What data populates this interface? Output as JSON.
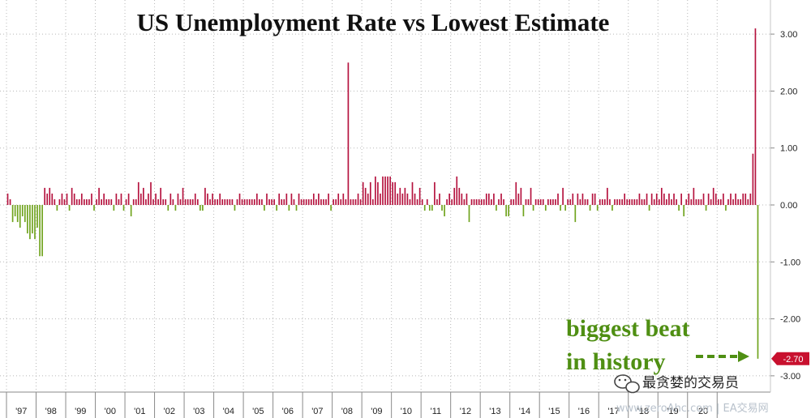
{
  "chart_data": {
    "type": "bar",
    "title": "US Unemployment Rate vs Lowest Estimate",
    "xlabel": "",
    "ylabel": "",
    "ylim": [
      -3.0,
      3.5
    ],
    "y_ticks": [
      "3.00",
      "2.00",
      "1.00",
      "0.00",
      "-1.00",
      "-2.00",
      "-3.00"
    ],
    "x_start_year": 1997,
    "x_tick_labels": [
      "'97",
      "'98",
      "'99",
      "'00",
      "'01",
      "'02",
      "'03",
      "'04",
      "'05",
      "'06",
      "'07",
      "'08",
      "'09",
      "'10",
      "'11",
      "'12",
      "'13",
      "'14",
      "'15",
      "'16",
      "'17",
      "'18",
      "'19",
      "'20"
    ],
    "grid": true,
    "positive_color": "#b5123e",
    "negative_color": "#6fa31c",
    "series": [
      {
        "values": [
          0.2,
          0.1,
          -0.3,
          -0.2,
          -0.3,
          -0.4,
          -0.2,
          -0.3,
          -0.5,
          -0.6,
          -0.5,
          -0.6,
          -0.4,
          -0.9,
          -0.9,
          0.3,
          0.2,
          0.3,
          0.2,
          0.1,
          -0.1,
          0.1,
          0.2,
          0.1,
          0.2,
          -0.1,
          0.3,
          0.2,
          0.1,
          0.1,
          0.2,
          0.1,
          0.1,
          0.1,
          0.2,
          -0.1,
          0.1,
          0.3,
          0.1,
          0.2,
          0.1,
          0.1,
          0.1,
          -0.1,
          0.2,
          0.1,
          0.2,
          -0.1,
          0.1,
          0.2,
          -0.2,
          0.1,
          0.1,
          0.4,
          0.2,
          0.3,
          0.1,
          0.2,
          0.4,
          0.1,
          0.2,
          0.1,
          0.3,
          0.1,
          0.1,
          -0.1,
          0.2,
          0.1,
          -0.1,
          0.2,
          0.1,
          0.3,
          0.1,
          0.1,
          0.1,
          0.1,
          0.2,
          0.1,
          -0.1,
          -0.1,
          0.3,
          0.2,
          0.1,
          0.2,
          0.1,
          0.1,
          0.2,
          0.1,
          0.1,
          0.1,
          0.1,
          0.1,
          -0.1,
          0.1,
          0.2,
          0.1,
          0.1,
          0.1,
          0.1,
          0.1,
          0.1,
          0.2,
          0.1,
          0.1,
          -0.1,
          0.2,
          0.1,
          0.1,
          0.1,
          -0.1,
          0.2,
          0.1,
          0.1,
          0.2,
          -0.1,
          0.2,
          0.1,
          -0.1,
          0.2,
          0.1,
          0.1,
          0.1,
          0.1,
          0.1,
          0.2,
          0.1,
          0.2,
          0.1,
          0.1,
          0.1,
          0.2,
          -0.1,
          0.1,
          0.1,
          0.2,
          0.1,
          0.2,
          0.1,
          2.5,
          0.1,
          0.1,
          0.1,
          0.2,
          0.1,
          0.4,
          0.3,
          0.2,
          0.4,
          0.1,
          0.5,
          0.4,
          0.2,
          0.5,
          0.5,
          0.5,
          0.5,
          0.4,
          0.4,
          0.2,
          0.3,
          0.2,
          0.3,
          0.2,
          0.1,
          0.4,
          0.2,
          0.1,
          0.3,
          0.1,
          -0.1,
          0.1,
          -0.1,
          -0.1,
          0.4,
          0.1,
          0.2,
          -0.1,
          -0.2,
          0.1,
          0.2,
          0.1,
          0.3,
          0.5,
          0.3,
          0.2,
          0.1,
          0.2,
          -0.3,
          0.1,
          0.1,
          0.1,
          0.1,
          0.1,
          0.1,
          0.2,
          0.2,
          0.1,
          0.2,
          -0.1,
          0.1,
          0.2,
          0.1,
          -0.2,
          -0.2,
          0.1,
          0.1,
          0.4,
          0.2,
          0.3,
          -0.2,
          0.1,
          0.1,
          0.3,
          -0.1,
          0.1,
          0.1,
          0.1,
          0.1,
          -0.1,
          0.1,
          0.1,
          0.1,
          0.1,
          0.2,
          -0.1,
          0.3,
          -0.1,
          0.1,
          0.1,
          0.2,
          -0.3,
          0.2,
          0.1,
          0.2,
          0.1,
          0.1,
          -0.1,
          0.2,
          0.2,
          -0.1,
          0.1,
          0.1,
          0.1,
          0.3,
          0.1,
          -0.1,
          0.1,
          0.1,
          0.1,
          0.1,
          0.2,
          0.1,
          0.1,
          0.1,
          0.1,
          0.1,
          0.2,
          0.1,
          0.1,
          0.2,
          -0.1,
          0.2,
          0.1,
          0.2,
          0.1,
          0.3,
          0.2,
          0.1,
          0.2,
          0.1,
          0.2,
          0.1,
          -0.1,
          0.2,
          -0.2,
          0.1,
          0.2,
          0.1,
          0.3,
          0.1,
          0.1,
          0.1,
          0.2,
          -0.1,
          0.2,
          0.1,
          0.3,
          0.2,
          0.1,
          0.1,
          0.2,
          -0.1,
          0.1,
          0.2,
          0.1,
          0.2,
          0.1,
          0.1,
          0.2,
          0.2,
          0.1,
          0.2,
          0.9,
          3.1,
          -2.7
        ]
      }
    ],
    "last_value_label": "-2.70",
    "annotation": {
      "line1": "biggest beat",
      "line2": "in history"
    }
  },
  "watermark": {
    "main": "最贪婪的交易员",
    "sub": "www.zeroAhc.com | EA交易网"
  }
}
